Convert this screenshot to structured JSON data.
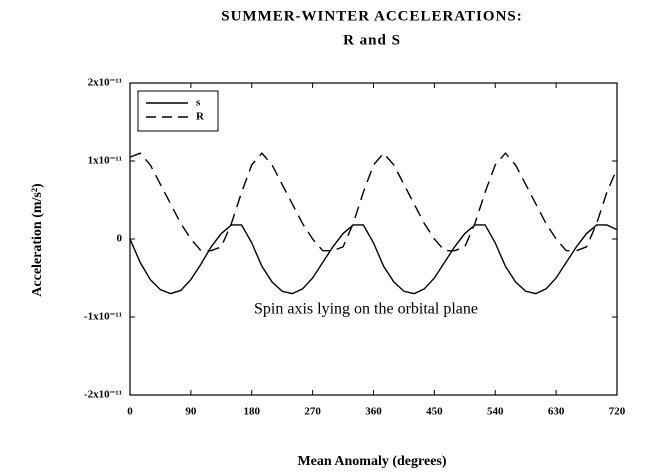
{
  "chart_data": {
    "type": "line",
    "title": "SUMMER-WINTER ACCELERATIONS:",
    "subtitle": "R and S",
    "xlabel": "Mean Anomaly (degrees)",
    "ylabel": "Acceleration (m/s²)",
    "annotation": "Spin axis lying on the orbital plane",
    "x": [
      0,
      15,
      30,
      45,
      60,
      75,
      90,
      105,
      120,
      135,
      150,
      165,
      180,
      195,
      210,
      225,
      240,
      255,
      270,
      285,
      300,
      315,
      330,
      345,
      360,
      375,
      390,
      405,
      420,
      435,
      450,
      465,
      480,
      495,
      510,
      525,
      540,
      555,
      570,
      585,
      600,
      615,
      630,
      645,
      660,
      675,
      690,
      705,
      720
    ],
    "series": [
      {
        "name": "s",
        "color": "#000000",
        "dash": false,
        "values": [
          0,
          -3e-12,
          -5.2e-12,
          -6.5e-12,
          -7e-12,
          -6.6e-12,
          -5.2e-12,
          -3.2e-12,
          -1e-12,
          7e-13,
          1.8e-12,
          1.8e-12,
          -5e-13,
          -3.5e-12,
          -5.5e-12,
          -6.7e-12,
          -7e-12,
          -6.4e-12,
          -5e-12,
          -3e-12,
          -1e-12,
          7e-13,
          1.8e-12,
          1.8e-12,
          -5e-13,
          -3.5e-12,
          -5.5e-12,
          -6.7e-12,
          -7e-12,
          -6.4e-12,
          -5e-12,
          -3e-12,
          -1e-12,
          7e-13,
          1.8e-12,
          1.8e-12,
          -5e-13,
          -3.5e-12,
          -5.5e-12,
          -6.7e-12,
          -7e-12,
          -6.4e-12,
          -5e-12,
          -3e-12,
          -1e-12,
          7e-13,
          1.8e-12,
          1.8e-12,
          1.2e-12
        ]
      },
      {
        "name": "R",
        "color": "#000000",
        "dash": true,
        "values": [
          1.05e-11,
          1.1e-11,
          9.5e-12,
          7e-12,
          4.5e-12,
          2e-12,
          0,
          -1.5e-12,
          -1.5e-12,
          -1e-12,
          2e-12,
          6e-12,
          9.5e-12,
          1.1e-11,
          9.5e-12,
          7e-12,
          4.5e-12,
          2e-12,
          0,
          -1.5e-12,
          -1.5e-12,
          -1e-12,
          2e-12,
          6e-12,
          9.5e-12,
          1.1e-11,
          9.5e-12,
          7e-12,
          4.5e-12,
          2e-12,
          0,
          -1.5e-12,
          -1.5e-12,
          -1e-12,
          2e-12,
          6e-12,
          9.5e-12,
          1.1e-11,
          9.5e-12,
          7e-12,
          4.5e-12,
          2e-12,
          0,
          -1.5e-12,
          -1.5e-12,
          -1e-12,
          2e-12,
          6e-12,
          9e-12
        ]
      }
    ],
    "xlim": [
      0,
      720
    ],
    "xticks": [
      0,
      90,
      180,
      270,
      360,
      450,
      540,
      630,
      720
    ],
    "ylim": [
      -2e-11,
      2e-11
    ],
    "yticks": [
      {
        "value": -2e-11,
        "label": "-2x10⁻¹¹"
      },
      {
        "value": -1e-11,
        "label": "-1x10⁻¹¹"
      },
      0,
      {
        "value": 1e-11,
        "label": "1x10⁻¹¹"
      },
      {
        "value": 2e-11,
        "label": "2x10⁻¹¹"
      }
    ],
    "legend": "upper left",
    "grid": false
  }
}
